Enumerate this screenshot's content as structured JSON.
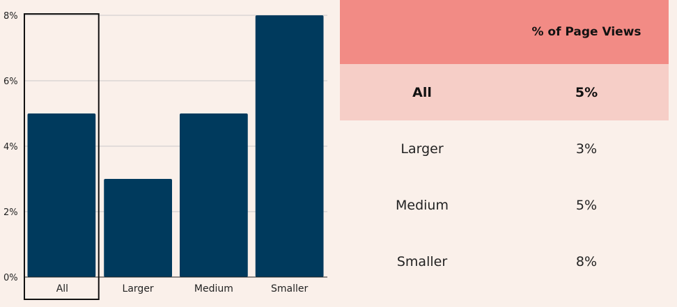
{
  "colors": {
    "background": "#faf0ea",
    "bar": "#003a5d",
    "grid": "#c9c9c9",
    "axis": "#222222",
    "highlight_outline": "#111111",
    "header_bg": "#f28b85",
    "highlight_row_bg": "#f6cec7"
  },
  "chart_data": {
    "type": "bar",
    "categories": [
      "All",
      "Larger",
      "Medium",
      "Smaller"
    ],
    "values": [
      5,
      3,
      5,
      8
    ],
    "yticks": [
      "0%",
      "2%",
      "4%",
      "6%",
      "8%"
    ],
    "ylim": [
      0,
      8
    ],
    "unit": "%",
    "grid": true,
    "highlighted_category": "All"
  },
  "table": {
    "header_label": "",
    "header_value": "% of Page Views",
    "rows": [
      {
        "label": "All",
        "value": "5%"
      },
      {
        "label": "Larger",
        "value": "3%"
      },
      {
        "label": "Medium",
        "value": "5%"
      },
      {
        "label": "Smaller",
        "value": "8%"
      }
    ],
    "highlighted_row": "All"
  }
}
